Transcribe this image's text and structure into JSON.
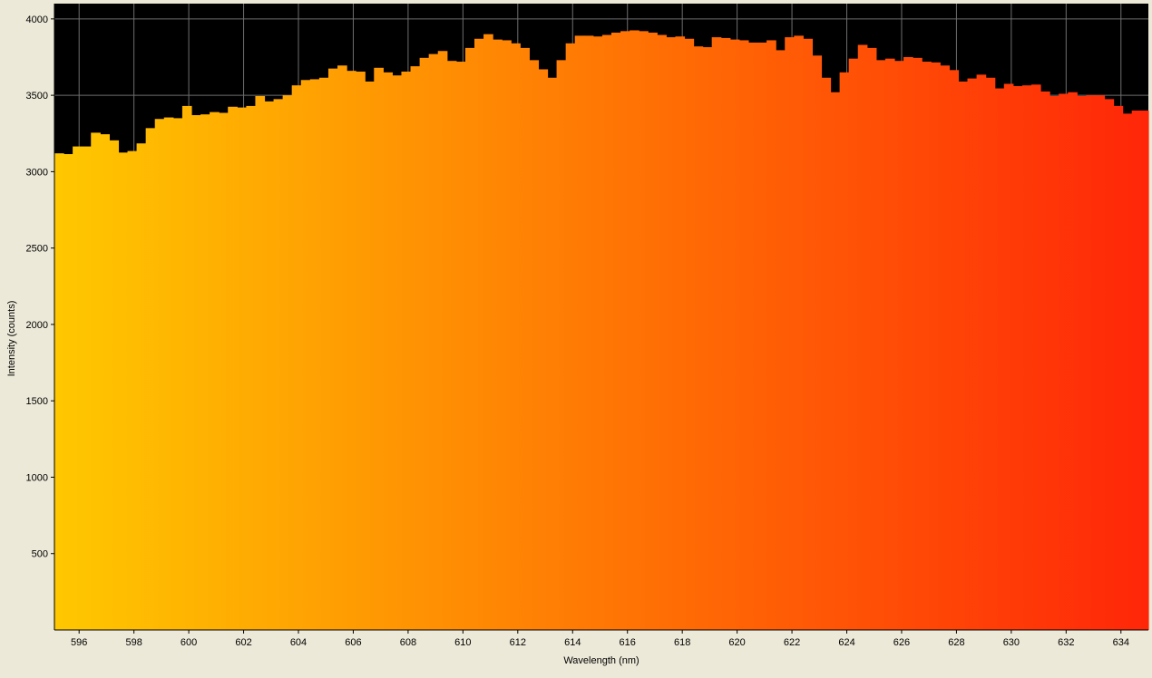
{
  "chart_data": {
    "type": "bar",
    "xlabel": "Wavelength (nm)",
    "ylabel": "Intensity (counts)",
    "xlim": [
      595.1,
      635.0
    ],
    "ylim": [
      0,
      4100
    ],
    "x_ticks": [
      "596",
      "598",
      "600",
      "602",
      "604",
      "606",
      "608",
      "610",
      "612",
      "614",
      "616",
      "618",
      "620",
      "622",
      "624",
      "626",
      "628",
      "630",
      "632",
      "634"
    ],
    "y_ticks": [
      "500",
      "1000",
      "1500",
      "2000",
      "2500",
      "3000",
      "3500",
      "4000"
    ],
    "grid": true,
    "background": "#000000",
    "fill_gradient": [
      "#ffc800",
      "#ff2608"
    ],
    "bin_width_nm": 0.333,
    "x_start_nm": 595.1,
    "values": [
      3120,
      3115,
      3165,
      3165,
      3255,
      3245,
      3205,
      3125,
      3135,
      3185,
      3285,
      3345,
      3355,
      3350,
      3430,
      3370,
      3375,
      3390,
      3385,
      3425,
      3420,
      3430,
      3495,
      3460,
      3475,
      3500,
      3565,
      3600,
      3605,
      3615,
      3675,
      3695,
      3660,
      3655,
      3590,
      3680,
      3650,
      3630,
      3655,
      3690,
      3745,
      3770,
      3790,
      3725,
      3720,
      3810,
      3870,
      3900,
      3865,
      3860,
      3840,
      3810,
      3730,
      3670,
      3615,
      3730,
      3840,
      3890,
      3890,
      3885,
      3895,
      3910,
      3920,
      3925,
      3920,
      3910,
      3895,
      3880,
      3885,
      3870,
      3820,
      3815,
      3880,
      3875,
      3865,
      3860,
      3845,
      3845,
      3860,
      3795,
      3880,
      3890,
      3870,
      3760,
      3615,
      3520,
      3650,
      3740,
      3830,
      3810,
      3730,
      3740,
      3725,
      3750,
      3745,
      3720,
      3715,
      3695,
      3665,
      3590,
      3610,
      3635,
      3615,
      3545,
      3575,
      3560,
      3565,
      3570,
      3525,
      3495,
      3510,
      3520,
      3495,
      3500,
      3500,
      3475,
      3430,
      3380,
      3400,
      3400
    ]
  }
}
